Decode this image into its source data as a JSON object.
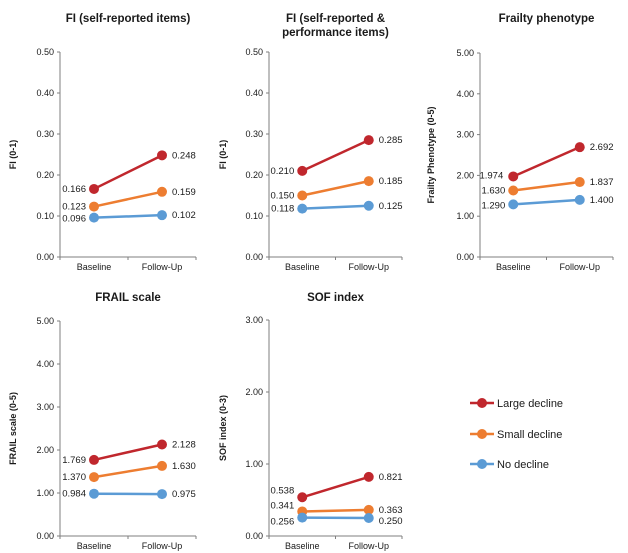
{
  "chart_data": [
    {
      "type": "line",
      "title": "FI (self-reported items)",
      "ylabel": "FI (0-1)",
      "categories": [
        "Baseline",
        "Follow-Up"
      ],
      "ylim": [
        0,
        0.5
      ],
      "yticks": [
        "0.00",
        "0.10",
        "0.20",
        "0.30",
        "0.40",
        "0.50"
      ],
      "series": [
        {
          "name": "Large decline",
          "values": [
            0.166,
            0.248
          ],
          "labels": [
            "0.166",
            "0.248"
          ]
        },
        {
          "name": "Small decline",
          "values": [
            0.123,
            0.159
          ],
          "labels": [
            "0.123",
            "0.159"
          ]
        },
        {
          "name": "No decline",
          "values": [
            0.096,
            0.102
          ],
          "labels": [
            "0.096",
            "0.102"
          ]
        }
      ]
    },
    {
      "type": "line",
      "title": "FI (self-reported &",
      "title2": "performance items)",
      "ylabel": "FI (0-1)",
      "categories": [
        "Baseline",
        "Follow-Up"
      ],
      "ylim": [
        0,
        0.5
      ],
      "yticks": [
        "0.00",
        "0.10",
        "0.20",
        "0.30",
        "0.40",
        "0.50"
      ],
      "series": [
        {
          "name": "Large decline",
          "values": [
            0.21,
            0.285
          ],
          "labels": [
            "0.210",
            "0.285"
          ]
        },
        {
          "name": "Small decline",
          "values": [
            0.15,
            0.185
          ],
          "labels": [
            "0.150",
            "0.185"
          ]
        },
        {
          "name": "No decline",
          "values": [
            0.118,
            0.125
          ],
          "labels": [
            "0.118",
            "0.125"
          ]
        }
      ]
    },
    {
      "type": "line",
      "title": "Frailty phenotype",
      "ylabel": "Frailty Phenotype (0-5)",
      "categories": [
        "Baseline",
        "Follow-Up"
      ],
      "ylim": [
        0,
        5
      ],
      "yticks": [
        "0.00",
        "1.00",
        "2.00",
        "3.00",
        "4.00",
        "5.00"
      ],
      "series": [
        {
          "name": "Large decline",
          "values": [
            1.974,
            2.692
          ],
          "labels": [
            "1.974",
            "2.692"
          ]
        },
        {
          "name": "Small decline",
          "values": [
            1.63,
            1.837
          ],
          "labels": [
            "1.630",
            "1.837"
          ]
        },
        {
          "name": "No decline",
          "values": [
            1.29,
            1.4
          ],
          "labels": [
            "1.290",
            "1.400"
          ]
        }
      ]
    },
    {
      "type": "line",
      "title": "FRAIL scale",
      "ylabel": "FRAIL scale (0-5)",
      "categories": [
        "Baseline",
        "Follow-Up"
      ],
      "ylim": [
        0,
        5
      ],
      "yticks": [
        "0.00",
        "1.00",
        "2.00",
        "3.00",
        "4.00",
        "5.00"
      ],
      "series": [
        {
          "name": "Large decline",
          "values": [
            1.769,
            2.128
          ],
          "labels": [
            "1.769",
            "2.128"
          ]
        },
        {
          "name": "Small decline",
          "values": [
            1.37,
            1.63
          ],
          "labels": [
            "1.370",
            "1.630"
          ]
        },
        {
          "name": "No decline",
          "values": [
            0.984,
            0.975
          ],
          "labels": [
            "0.984",
            "0.975"
          ]
        }
      ]
    },
    {
      "type": "line",
      "title": "SOF index",
      "ylabel": "SOF index (0-3)",
      "categories": [
        "Baseline",
        "Follow-Up"
      ],
      "ylim": [
        0,
        3
      ],
      "yticks": [
        "0.00",
        "1.00",
        "2.00",
        "3.00"
      ],
      "series": [
        {
          "name": "Large decline",
          "values": [
            0.538,
            0.821
          ],
          "labels": [
            "0.538",
            "0.821"
          ]
        },
        {
          "name": "Small decline",
          "values": [
            0.341,
            0.363
          ],
          "labels": [
            "0.341",
            "0.363"
          ]
        },
        {
          "name": "No decline",
          "values": [
            0.256,
            0.25
          ],
          "labels": [
            "0.256",
            "0.250"
          ]
        }
      ]
    }
  ],
  "legend": {
    "position": "bottom-right",
    "items": [
      "Large decline",
      "Small decline",
      "No decline"
    ]
  },
  "colors": {
    "Large decline": "#c0272d",
    "Small decline": "#ed7d31",
    "No decline": "#5b9bd5",
    "axis": "#7f7f7f"
  }
}
